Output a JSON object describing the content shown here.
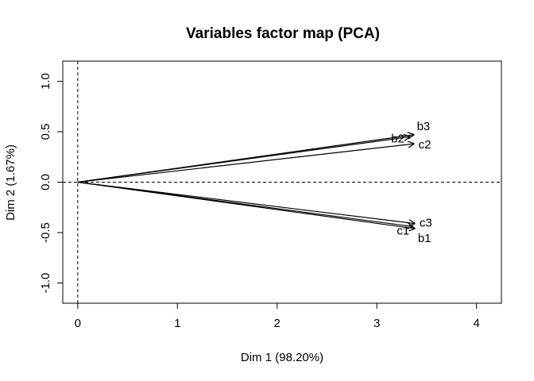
{
  "chart_data": {
    "type": "scatter",
    "subtype": "pca-variables-arrows",
    "title": "Variables factor map (PCA)",
    "xlabel": "Dim 1 (98.20%)",
    "ylabel": "Dim 2 (1.67%)",
    "xlim": [
      -0.15,
      4.25
    ],
    "ylim": [
      -1.2,
      1.2
    ],
    "xticks": [
      0,
      1,
      2,
      3,
      4
    ],
    "yticks": [
      -1.0,
      -0.5,
      0.0,
      0.5,
      1.0
    ],
    "xtick_labels": [
      "0",
      "1",
      "2",
      "3",
      "4"
    ],
    "ytick_labels": [
      "-1.0",
      "-0.5",
      "0.0",
      "0.5",
      "1.0"
    ],
    "reference_lines": {
      "x": 0,
      "y": 0,
      "style": "dashed"
    },
    "grid": false,
    "variables": [
      {
        "name": "b3",
        "x": 3.37,
        "y": 0.47
      },
      {
        "name": "b2",
        "x": 3.33,
        "y": 0.45
      },
      {
        "name": "c2",
        "x": 3.37,
        "y": 0.38
      },
      {
        "name": "c3",
        "x": 3.38,
        "y": -0.41
      },
      {
        "name": "c1",
        "x": 3.36,
        "y": -0.44
      },
      {
        "name": "b1",
        "x": 3.38,
        "y": -0.46
      }
    ]
  }
}
